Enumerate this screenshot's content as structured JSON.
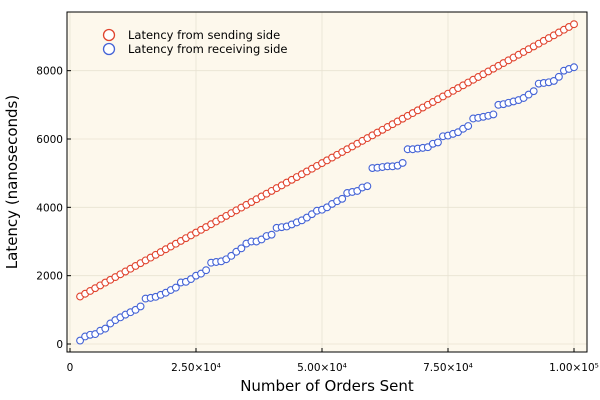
{
  "chart_data": {
    "type": "scatter",
    "xlabel": "Number of Orders Sent",
    "ylabel": "Latency (nanoseconds)",
    "xlim": [
      0,
      100000
    ],
    "ylim": [
      0,
      9600
    ],
    "x_ticks": [
      0,
      25000,
      50000,
      75000,
      100000
    ],
    "x_tick_labels": [
      "0",
      "2.50×10⁴",
      "5.00×10⁴",
      "7.50×10⁴",
      "1.00×10⁵"
    ],
    "y_ticks": [
      0,
      2000,
      4000,
      6000,
      8000
    ],
    "y_tick_labels": [
      "0",
      "2000",
      "4000",
      "6000",
      "8000"
    ],
    "grid": true,
    "legend_position": "top-left",
    "plot_background": "#fdf8ec",
    "series": [
      {
        "name": "Latency from sending side",
        "color": "#e0442e",
        "marker": "hollow-circle",
        "x": [
          2000,
          3000,
          4000,
          5000,
          6000,
          7000,
          8000,
          9000,
          10000,
          11000,
          12000,
          13000,
          14000,
          15000,
          16000,
          17000,
          18000,
          19000,
          20000,
          21000,
          22000,
          23000,
          24000,
          25000,
          26000,
          27000,
          28000,
          29000,
          30000,
          31000,
          32000,
          33000,
          34000,
          35000,
          36000,
          37000,
          38000,
          39000,
          40000,
          41000,
          42000,
          43000,
          44000,
          45000,
          46000,
          47000,
          48000,
          49000,
          50000,
          51000,
          52000,
          53000,
          54000,
          55000,
          56000,
          57000,
          58000,
          59000,
          60000,
          61000,
          62000,
          63000,
          64000,
          65000,
          66000,
          67000,
          68000,
          69000,
          70000,
          71000,
          72000,
          73000,
          74000,
          75000,
          76000,
          77000,
          78000,
          79000,
          80000,
          81000,
          82000,
          83000,
          84000,
          85000,
          86000,
          87000,
          88000,
          89000,
          90000,
          91000,
          92000,
          93000,
          94000,
          95000,
          96000,
          97000,
          98000,
          99000,
          100000
        ],
        "y": [
          1390,
          1471,
          1553,
          1634,
          1715,
          1797,
          1878,
          1959,
          2041,
          2122,
          2203,
          2285,
          2366,
          2447,
          2529,
          2610,
          2691,
          2773,
          2854,
          2935,
          3017,
          3098,
          3179,
          3261,
          3342,
          3423,
          3505,
          3586,
          3667,
          3749,
          3830,
          3911,
          3993,
          4074,
          4155,
          4237,
          4318,
          4399,
          4481,
          4562,
          4643,
          4725,
          4806,
          4887,
          4969,
          5050,
          5131,
          5213,
          5294,
          5375,
          5457,
          5538,
          5619,
          5701,
          5782,
          5863,
          5945,
          6026,
          6107,
          6189,
          6270,
          6351,
          6433,
          6514,
          6595,
          6677,
          6758,
          6839,
          6921,
          7002,
          7083,
          7165,
          7246,
          7327,
          7409,
          7490,
          7571,
          7653,
          7734,
          7815,
          7897,
          7978,
          8059,
          8141,
          8222,
          8303,
          8385,
          8466,
          8547,
          8629,
          8710,
          8791,
          8873,
          8954,
          9035,
          9117,
          9198,
          9279,
          9360
        ]
      },
      {
        "name": "Latency from receiving side",
        "color": "#4463d6",
        "marker": "hollow-circle",
        "x": [
          2000,
          3000,
          4000,
          5000,
          6000,
          7000,
          8000,
          9000,
          10000,
          11000,
          12000,
          13000,
          14000,
          15000,
          16000,
          17000,
          18000,
          19000,
          20000,
          21000,
          22000,
          23000,
          24000,
          25000,
          26000,
          27000,
          28000,
          29000,
          30000,
          31000,
          32000,
          33000,
          34000,
          35000,
          36000,
          37000,
          38000,
          39000,
          40000,
          41000,
          42000,
          43000,
          44000,
          45000,
          46000,
          47000,
          48000,
          49000,
          50000,
          51000,
          52000,
          53000,
          54000,
          55000,
          56000,
          57000,
          58000,
          59000,
          60000,
          61000,
          62000,
          63000,
          64000,
          65000,
          66000,
          67000,
          68000,
          69000,
          70000,
          71000,
          72000,
          73000,
          74000,
          75000,
          76000,
          77000,
          78000,
          79000,
          80000,
          81000,
          82000,
          83000,
          84000,
          85000,
          86000,
          87000,
          88000,
          89000,
          90000,
          91000,
          92000,
          93000,
          94000,
          95000,
          96000,
          97000,
          98000,
          99000,
          100000
        ],
        "y": [
          100,
          220,
          270,
          290,
          390,
          450,
          600,
          700,
          780,
          860,
          930,
          1000,
          1100,
          1330,
          1350,
          1380,
          1440,
          1500,
          1580,
          1650,
          1800,
          1820,
          1900,
          2000,
          2060,
          2160,
          2380,
          2400,
          2420,
          2480,
          2580,
          2700,
          2800,
          2940,
          3000,
          3000,
          3060,
          3160,
          3200,
          3400,
          3420,
          3440,
          3500,
          3560,
          3620,
          3700,
          3800,
          3900,
          3930,
          4000,
          4100,
          4180,
          4250,
          4420,
          4450,
          4480,
          4580,
          4620,
          5150,
          5160,
          5180,
          5200,
          5200,
          5220,
          5300,
          5700,
          5700,
          5720,
          5740,
          5760,
          5860,
          5900,
          6080,
          6100,
          6150,
          6200,
          6300,
          6380,
          6600,
          6620,
          6650,
          6680,
          6720,
          7000,
          7020,
          7060,
          7100,
          7140,
          7200,
          7300,
          7400,
          7620,
          7640,
          7660,
          7700,
          7820,
          8000,
          8050,
          8100
        ]
      }
    ]
  }
}
